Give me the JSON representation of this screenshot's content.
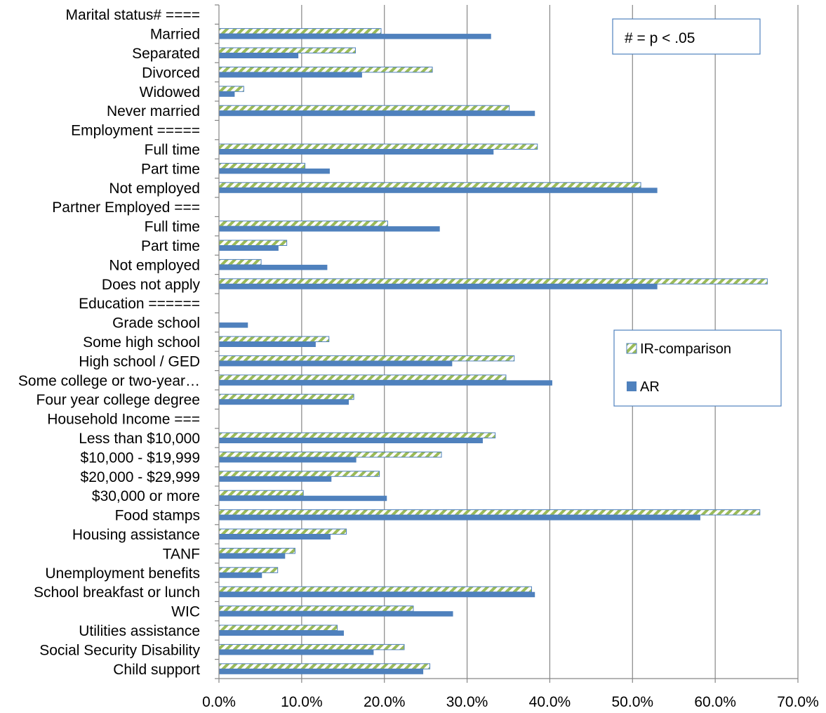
{
  "chart_data": {
    "type": "bar",
    "orientation": "horizontal",
    "categories": [
      "Marital status# ====",
      "Married",
      "Separated",
      "Divorced",
      "Widowed",
      "Never married",
      "Employment =====",
      "Full time",
      "Part time",
      "Not employed",
      "Partner Employed ===",
      "Full time",
      "Part time",
      "Not employed",
      "Does not apply",
      "Education ======",
      "Grade school",
      "Some high school",
      "High school / GED",
      "Some college or two-year…",
      "Four year college degree",
      "Household Income ===",
      "Less than $10,000",
      "$10,000 - $19,999",
      "$20,000 - $29,999",
      "$30,000 or more",
      "Food stamps",
      "Housing assistance",
      "TANF",
      "Unemployment benefits",
      "School breakfast or lunch",
      "WIC",
      "Utilities assistance",
      "Social Security Disability",
      "Child support"
    ],
    "series": [
      {
        "name": "IR-comparison",
        "color": "#9bbb59",
        "pattern": "diagonal-stripes",
        "values": [
          null,
          19.6,
          16.5,
          25.8,
          3.0,
          35.1,
          null,
          38.5,
          10.4,
          51.0,
          null,
          20.4,
          8.2,
          5.1,
          66.3,
          null,
          0.0,
          13.3,
          35.7,
          34.7,
          16.3,
          null,
          33.4,
          26.9,
          19.4,
          10.2,
          65.4,
          15.4,
          9.2,
          7.1,
          37.8,
          23.5,
          14.3,
          22.4,
          25.5
        ]
      },
      {
        "name": "AR",
        "color": "#4f81bd",
        "values": [
          null,
          32.9,
          9.6,
          17.3,
          1.9,
          38.2,
          null,
          33.2,
          13.4,
          53.0,
          null,
          26.7,
          7.2,
          13.1,
          53.0,
          null,
          3.5,
          11.7,
          28.2,
          40.3,
          15.7,
          null,
          31.9,
          16.6,
          13.6,
          20.3,
          58.2,
          13.5,
          8.0,
          5.2,
          38.2,
          28.3,
          15.1,
          18.7,
          24.7
        ]
      }
    ],
    "xlim": [
      0,
      70
    ],
    "xticks": [
      "0.0%",
      "10.0%",
      "20.0%",
      "30.0%",
      "40.0%",
      "50.0%",
      "60.0%",
      "70.0%"
    ],
    "grid": "vertical",
    "legend_position": "right-middle",
    "annotation": "# = p < .05",
    "title": "",
    "xlabel": "",
    "ylabel": ""
  }
}
